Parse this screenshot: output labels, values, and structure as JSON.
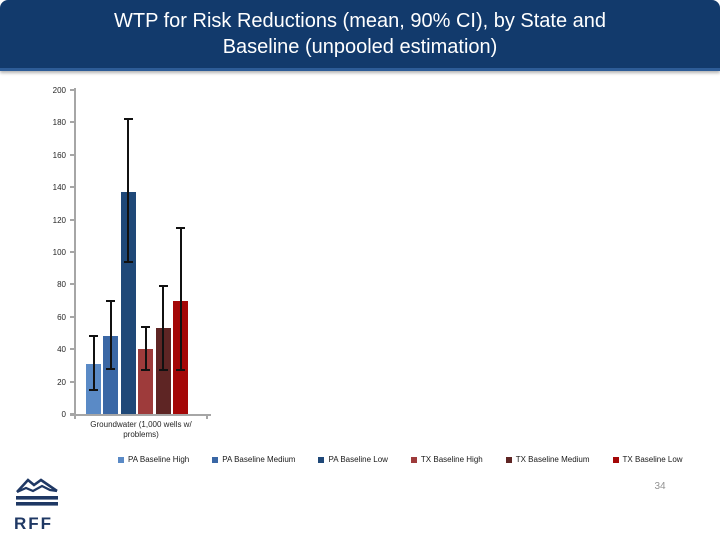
{
  "slide": {
    "title_line1": "WTP for Risk Reductions (mean, 90% CI), by State and",
    "title_line2": "Baseline (unpooled estimation)",
    "page_number": "34",
    "logo_text": "RFF"
  },
  "colors": {
    "title_bar_bg": "#123a6c",
    "title_bar_edge": "#2d5c97",
    "axis_line": "#a6a6a6",
    "tick_label": "#262626",
    "error_bar": "#111111",
    "logo_navy": "#1f3864",
    "page_number": "#929292"
  },
  "chart_data": {
    "type": "bar",
    "title": "WTP for Risk Reductions (mean, 90% CI), by State and Baseline (unpooled estimation)",
    "xlabel": "",
    "ylabel": "",
    "category": "Groundwater (1,000 wells w/ problems)",
    "category_label_lines": [
      "Groundwater (1,000 wells w/",
      "problems)"
    ],
    "ylim": [
      0,
      200
    ],
    "yticks": [
      0,
      20,
      40,
      60,
      80,
      100,
      120,
      140,
      160,
      180,
      200
    ],
    "grid": false,
    "legend_position": "bottom",
    "error_bars": "90% CI",
    "series": [
      {
        "name": "PA Baseline High",
        "value": 31,
        "ci_low": 15,
        "ci_high": 48,
        "color": "#5a8ac6"
      },
      {
        "name": "PA Baseline Medium",
        "value": 48,
        "ci_low": 28,
        "ci_high": 70,
        "color": "#3a67a5"
      },
      {
        "name": "PA Baseline Low",
        "value": 137,
        "ci_low": 94,
        "ci_high": 182,
        "color": "#1f4878"
      },
      {
        "name": "TX Baseline High",
        "value": 40,
        "ci_low": 27,
        "ci_high": 54,
        "color": "#9e3b3b"
      },
      {
        "name": "TX Baseline Medium",
        "value": 53,
        "ci_low": 27,
        "ci_high": 79,
        "color": "#5e2524"
      },
      {
        "name": "TX Baseline Low",
        "value": 70,
        "ci_low": 27,
        "ci_high": 115,
        "color": "#a40707"
      }
    ]
  }
}
